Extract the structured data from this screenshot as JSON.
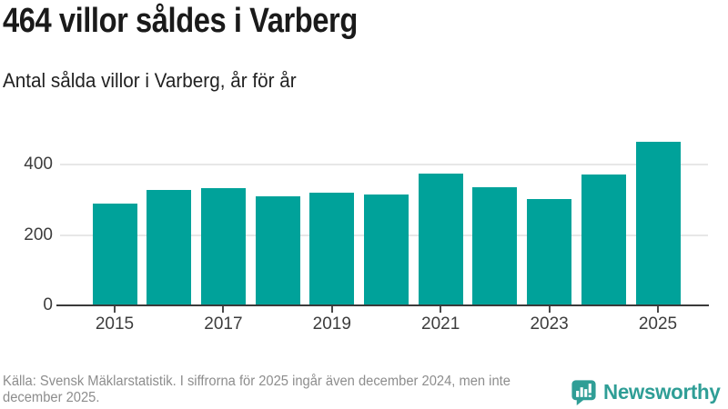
{
  "header": {
    "title": "464 villor såldes i Varberg",
    "subtitle": "Antal sålda villor i Varberg, år för år"
  },
  "chart_data": {
    "type": "bar",
    "title": "464 villor såldes i Varberg",
    "subtitle": "Antal sålda villor i Varberg, år för år",
    "categories": [
      2015,
      2016,
      2017,
      2018,
      2019,
      2020,
      2021,
      2022,
      2023,
      2024,
      2025
    ],
    "values": [
      290,
      327,
      333,
      309,
      320,
      316,
      374,
      335,
      301,
      371,
      464
    ],
    "xlabel": "",
    "ylabel": "",
    "ylim": [
      0,
      480
    ],
    "yticks": [
      0,
      200,
      400
    ],
    "xticks": [
      2015,
      2017,
      2019,
      2021,
      2023,
      2025
    ],
    "grid": "horizontal",
    "legend": "none",
    "bar_color": "#00a29a"
  },
  "footer": {
    "source_text": "Källa: Svensk Mäklarstatistik. I siffrorna för 2025 ingår även december 2024, men inte december 2025.",
    "brand": "Newsworthy",
    "brand_color": "#2f9e96"
  }
}
